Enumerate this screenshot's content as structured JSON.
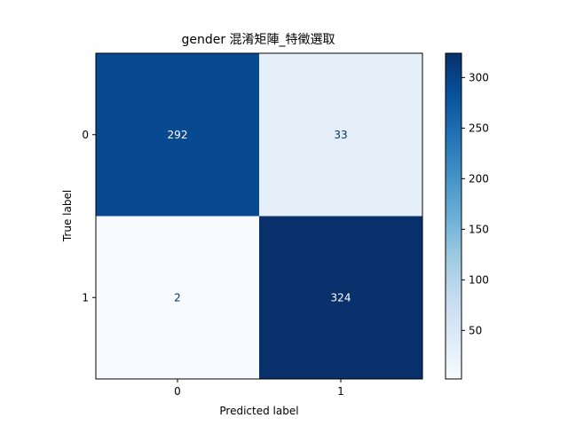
{
  "chart_data": {
    "type": "heatmap",
    "title": "gender 混淆矩陣_特徵選取",
    "xlabel": "Predicted label",
    "ylabel": "True label",
    "x_categories": [
      "0",
      "1"
    ],
    "y_categories": [
      "0",
      "1"
    ],
    "matrix": [
      [
        292,
        33
      ],
      [
        2,
        324
      ]
    ],
    "colormap": "Blues",
    "colorbar": {
      "ticks": [
        "50",
        "100",
        "150",
        "200",
        "250",
        "300"
      ],
      "range": [
        2,
        324
      ]
    },
    "grid": false
  }
}
